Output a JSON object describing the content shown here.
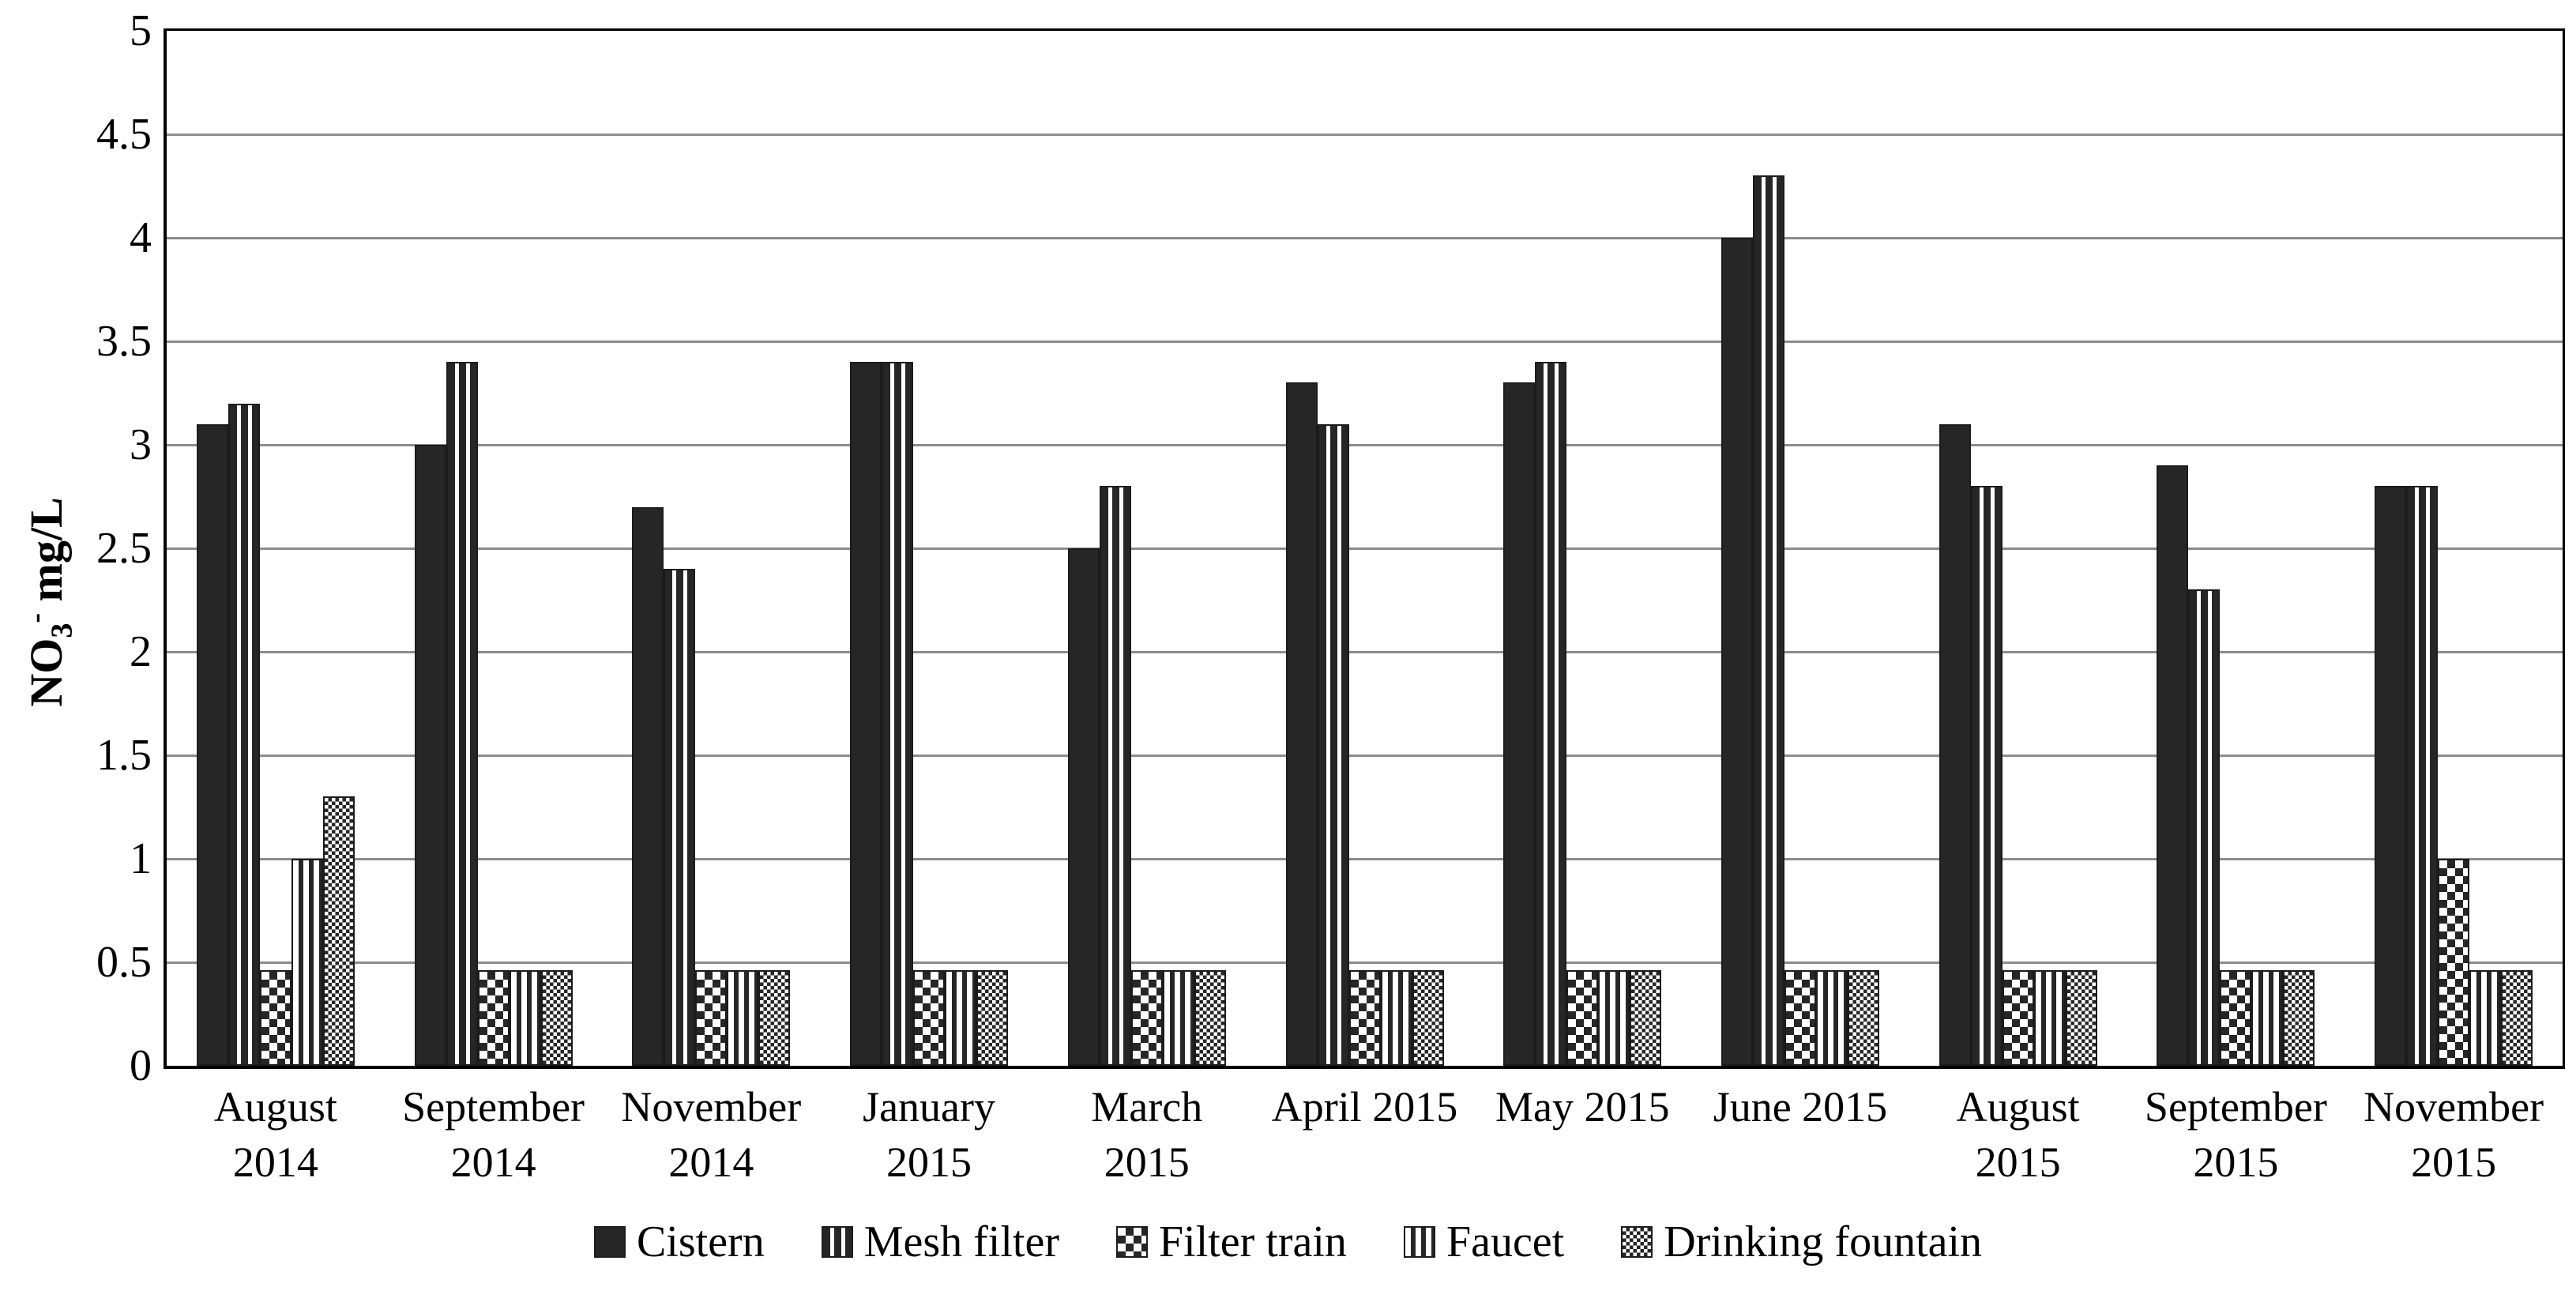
{
  "chart_data": {
    "type": "bar",
    "title": "",
    "ylabel": {
      "base": "NO",
      "sub": "3",
      "sup": "-",
      "unit": " mg/L"
    },
    "xlabel": "",
    "ylim": [
      0,
      5
    ],
    "ytick_step": 0.5,
    "yticks": [
      "0",
      "0.5",
      "1",
      "1.5",
      "2",
      "2.5",
      "3",
      "3.5",
      "4",
      "4.5",
      "5"
    ],
    "grid": true,
    "legend_position": "bottom",
    "categories": [
      [
        "August",
        "2014"
      ],
      [
        "September",
        "2014"
      ],
      [
        "November",
        "2014"
      ],
      [
        "January",
        "2015"
      ],
      [
        "March",
        "2015"
      ],
      [
        "April 2015"
      ],
      [
        "May 2015"
      ],
      [
        "June 2015"
      ],
      [
        "August",
        "2015"
      ],
      [
        "September",
        "2015"
      ],
      [
        "November",
        "2015"
      ]
    ],
    "series": [
      {
        "name": "Cistern",
        "pattern": "solid",
        "values": [
          3.1,
          3.0,
          2.7,
          3.4,
          2.5,
          3.3,
          3.3,
          4.0,
          3.1,
          2.9,
          2.8
        ]
      },
      {
        "name": "Mesh filter",
        "pattern": "stripes-dark",
        "values": [
          3.2,
          3.4,
          2.4,
          3.4,
          2.8,
          3.1,
          3.4,
          4.3,
          2.8,
          2.3,
          2.8
        ]
      },
      {
        "name": "Filter train",
        "pattern": "checker-large",
        "values": [
          0.46,
          0.46,
          0.46,
          0.46,
          0.46,
          0.46,
          0.46,
          0.46,
          0.46,
          0.46,
          1.0
        ]
      },
      {
        "name": "Faucet",
        "pattern": "stripes-light",
        "values": [
          1.0,
          0.46,
          0.46,
          0.46,
          0.46,
          0.46,
          0.46,
          0.46,
          0.46,
          0.46,
          0.46
        ]
      },
      {
        "name": "Drinking fountain",
        "pattern": "checker-fine",
        "values": [
          1.3,
          0.46,
          0.46,
          0.46,
          0.46,
          0.46,
          0.46,
          0.46,
          0.46,
          0.46,
          0.46
        ]
      }
    ],
    "colors": {
      "bar": "#262626",
      "grid": "#8c8c8c",
      "axis": "#000000",
      "background": "#ffffff"
    }
  }
}
